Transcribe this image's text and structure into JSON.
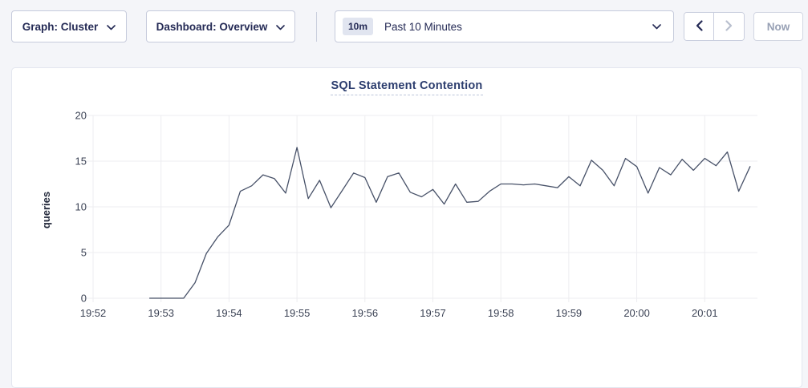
{
  "header": {
    "graph_dropdown": {
      "label": "Graph: Cluster"
    },
    "dashboard_dropdown": {
      "label": "Dashboard: Overview"
    },
    "time_range": {
      "badge": "10m",
      "label": "Past 10 Minutes"
    },
    "now_button_label": "Now"
  },
  "chart_data": {
    "type": "line",
    "title": "SQL Statement Contention",
    "ylabel": "queries",
    "xlabel": "",
    "grid": true,
    "legend": "none",
    "ylim": [
      0,
      20
    ],
    "y_ticks": [
      0,
      5,
      10,
      15,
      20
    ],
    "x_ticks": [
      "19:52",
      "19:53",
      "19:54",
      "19:55",
      "19:56",
      "19:57",
      "19:58",
      "19:59",
      "20:00",
      "20:01"
    ],
    "line_color": "#475168",
    "series": [
      {
        "name": "queries",
        "start_time": "19:52:50",
        "interval_seconds": 10,
        "values": [
          0,
          0,
          0,
          0,
          1.7,
          4.9,
          6.7,
          8.0,
          11.7,
          12.3,
          13.5,
          13.1,
          11.5,
          16.5,
          10.9,
          12.9,
          9.9,
          11.8,
          13.7,
          13.2,
          10.5,
          13.3,
          13.7,
          11.6,
          11.1,
          11.9,
          10.3,
          12.5,
          10.5,
          10.6,
          11.7,
          12.5,
          12.5,
          12.4,
          12.5,
          12.3,
          12.1,
          13.3,
          12.3,
          15.1,
          14.0,
          12.3,
          15.3,
          14.4,
          11.5,
          14.3,
          13.5,
          15.2,
          14.0,
          15.3,
          14.5,
          16.0,
          11.7,
          14.4
        ]
      }
    ]
  },
  "colors": {
    "accent_text": "#242a55",
    "page_background": "#f4f5f9",
    "panel_background": "#ffffff",
    "grid_line": "#ededf0",
    "series_line": "#475168",
    "disabled_text": "#98a1b5"
  }
}
